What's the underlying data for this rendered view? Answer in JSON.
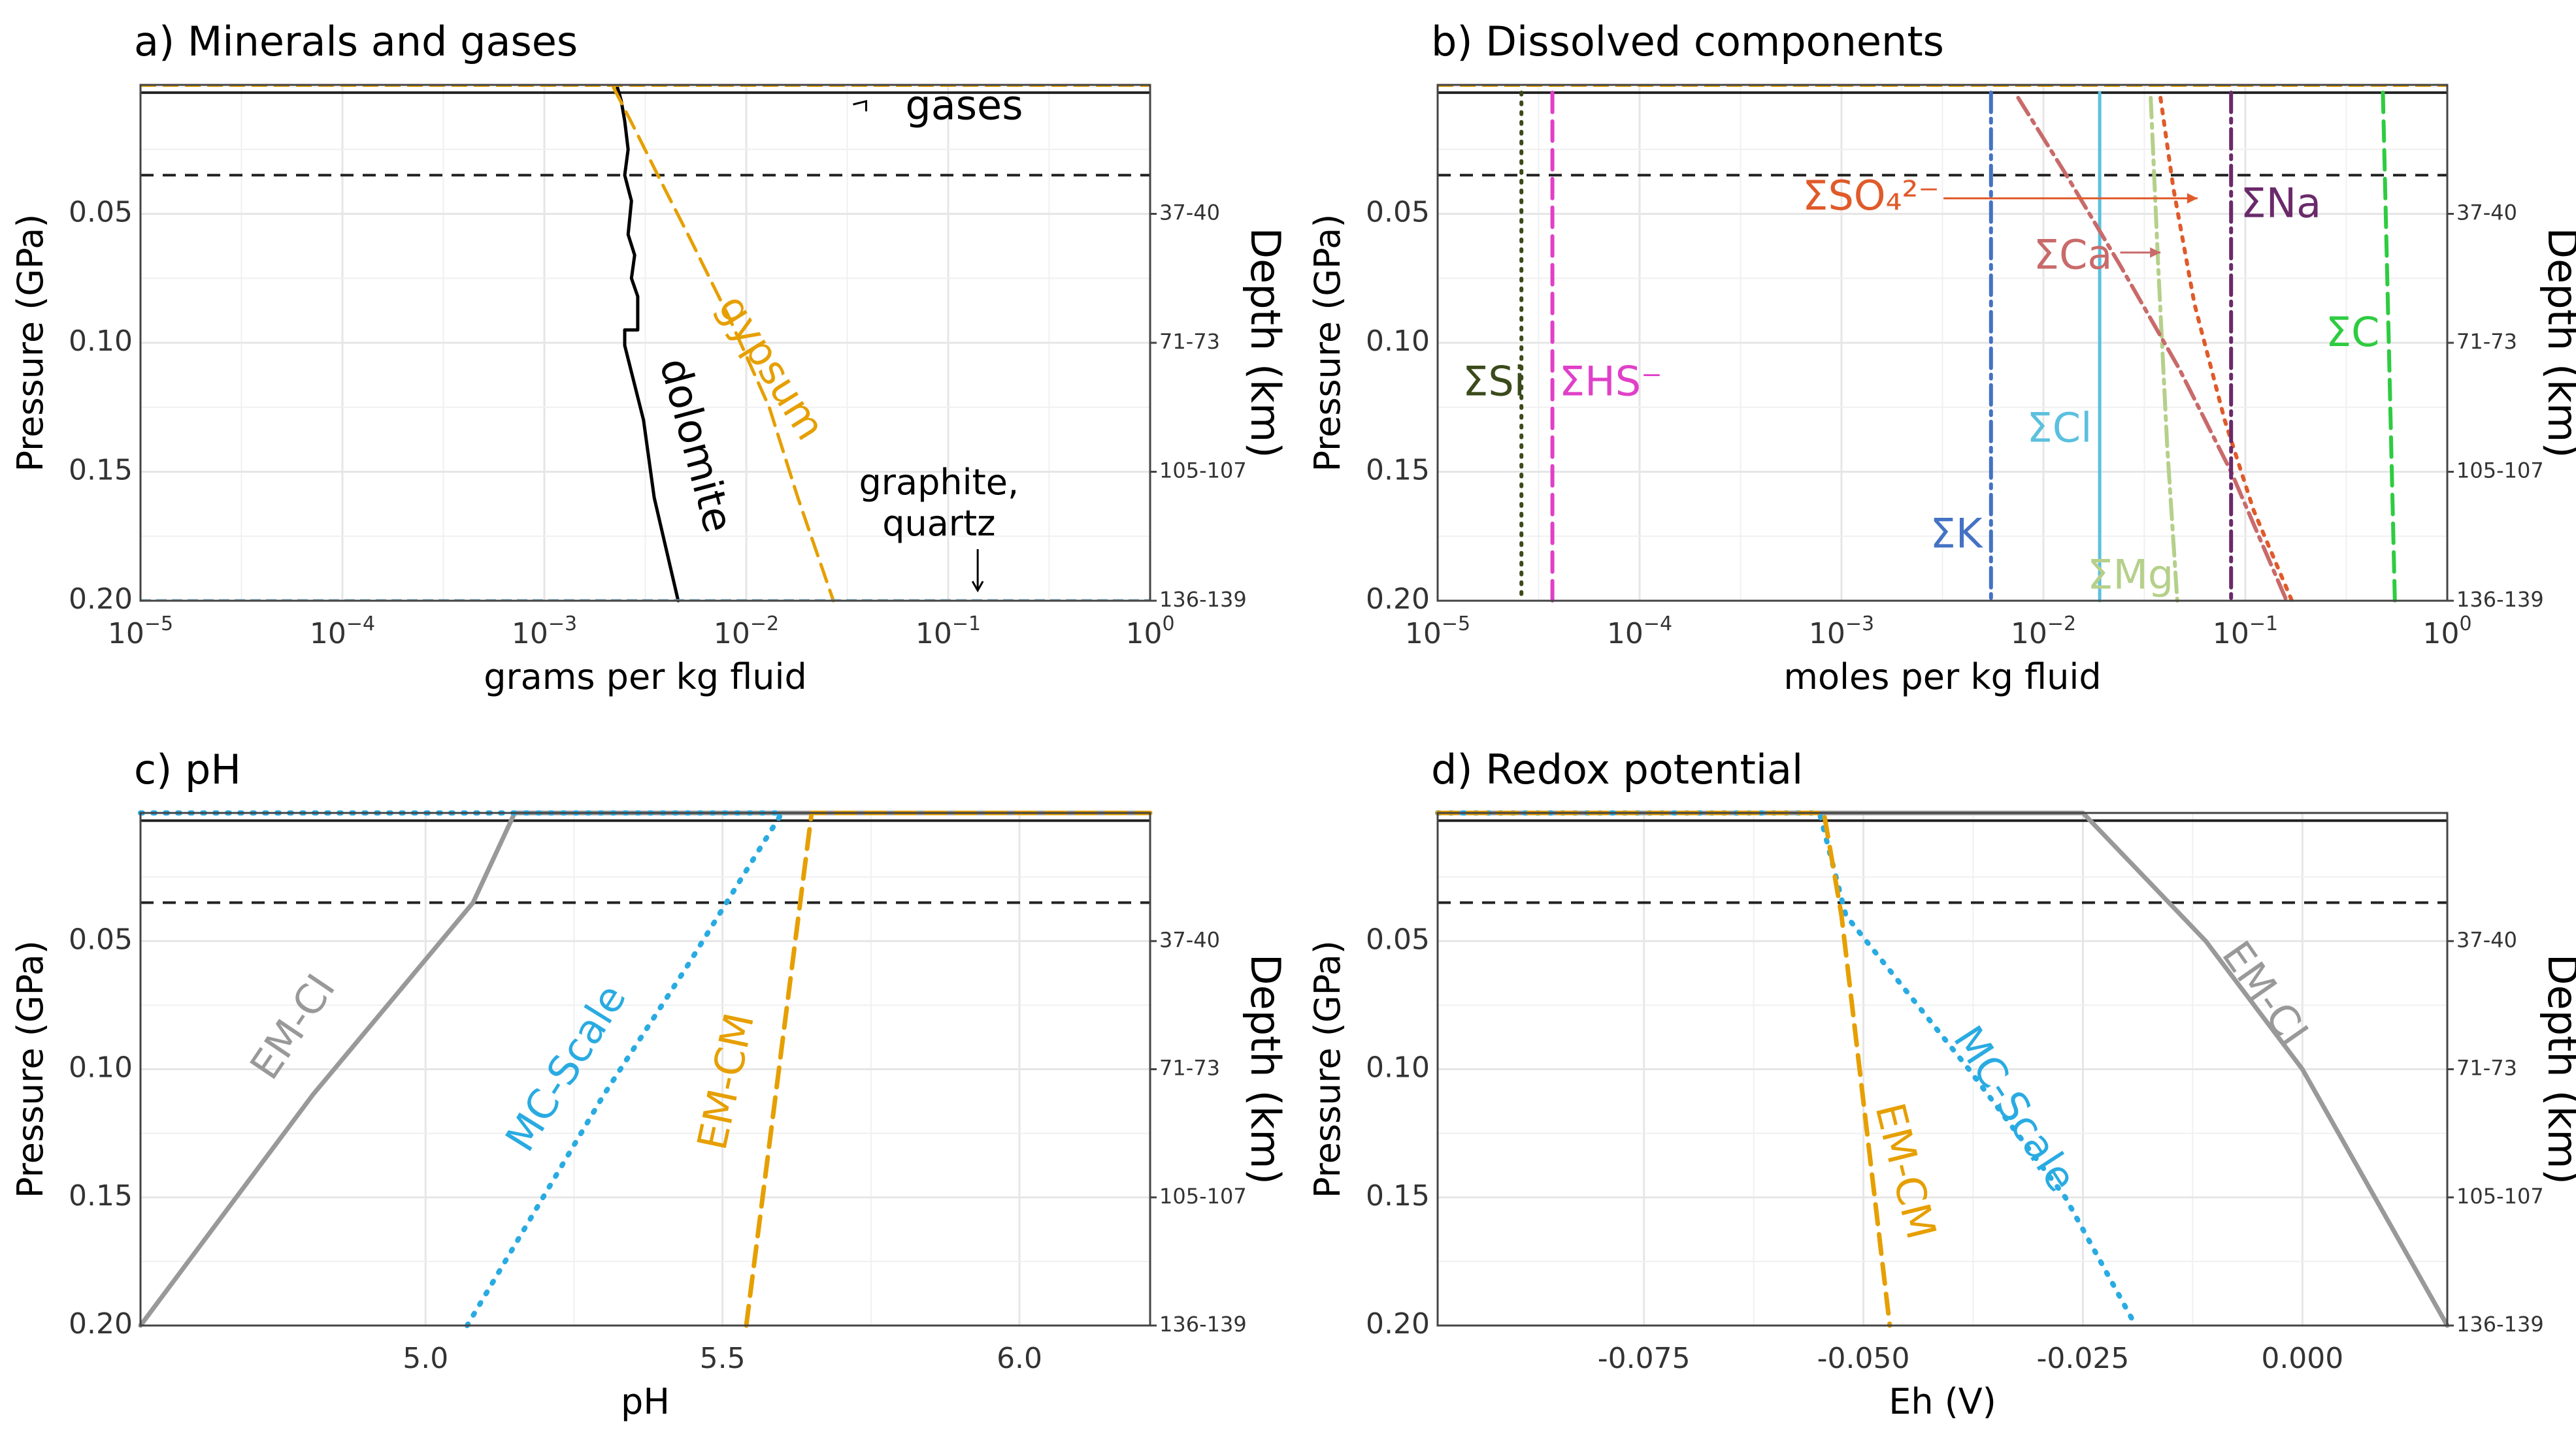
{
  "chart_data": [
    {
      "id": "a",
      "type": "line",
      "title": "a) Minerals and gases",
      "xlabel": "grams per kg fluid",
      "ylabel": "Pressure (GPa)",
      "y2label": "Depth (km)",
      "xscale": "log",
      "xlim": [
        1e-05,
        1
      ],
      "ylim": [
        0.2,
        0.0
      ],
      "xticks": [
        {
          "v": 1e-05,
          "base": "10",
          "exp": "−5"
        },
        {
          "v": 0.0001,
          "base": "10",
          "exp": "−4"
        },
        {
          "v": 0.001,
          "base": "10",
          "exp": "−3"
        },
        {
          "v": 0.01,
          "base": "10",
          "exp": "−2"
        },
        {
          "v": 0.1,
          "base": "10",
          "exp": "−1"
        },
        {
          "v": 1,
          "base": "10",
          "exp": "0"
        }
      ],
      "yticks": [
        {
          "v": 0.05,
          "label": "0.05"
        },
        {
          "v": 0.1,
          "label": "0.10"
        },
        {
          "v": 0.15,
          "label": "0.15"
        },
        {
          "v": 0.2,
          "label": "0.20"
        }
      ],
      "depth_ticks": [
        {
          "v": 0.05,
          "label": "37-40"
        },
        {
          "v": 0.1,
          "label": "71-73"
        },
        {
          "v": 0.15,
          "label": "105-107"
        },
        {
          "v": 0.2,
          "label": "136-139"
        }
      ],
      "solid_ref": 0.003,
      "dashed_ref": 0.035,
      "series": [
        {
          "name": "dolomite",
          "color": "#000000",
          "dash": "",
          "width": 5,
          "x": [
            0.0023,
            0.0024,
            0.0025,
            0.0026,
            0.0025,
            0.0027,
            0.0026,
            0.0028,
            0.0027,
            0.0029,
            0.0029,
            0.0025,
            0.0025,
            0.0031,
            0.0035,
            0.0046
          ],
          "y": [
            0.001,
            0.006,
            0.014,
            0.025,
            0.035,
            0.045,
            0.058,
            0.066,
            0.075,
            0.082,
            0.095,
            0.095,
            0.101,
            0.13,
            0.16,
            0.2
          ]
        },
        {
          "name": "gypsum",
          "color": "#e69f00",
          "dash": "28,14",
          "width": 5,
          "x": [
            0.0022,
            0.0028,
            0.0037,
            0.0053,
            0.0082,
            0.013,
            0.018,
            0.027
          ],
          "y": [
            0.001,
            0.017,
            0.036,
            0.06,
            0.09,
            0.125,
            0.16,
            0.2
          ]
        }
      ],
      "texts": [
        {
          "name": "gases-label",
          "text": "gases",
          "x": 0.12,
          "y": 0.009,
          "rot": 0,
          "color": "#000000",
          "size": 62
        },
        {
          "name": "dolomite-label",
          "text": "dolomite",
          "x": 0.0055,
          "y": 0.14,
          "rot": 75,
          "color": "#000000",
          "size": 62
        },
        {
          "name": "gypsum-label",
          "text": "gypsum",
          "x": 0.013,
          "y": 0.11,
          "rot": 58,
          "color": "#e69f00",
          "size": 62
        },
        {
          "name": "graphite-label",
          "text": "graphite,",
          "x": 0.09,
          "y": 0.155,
          "rot": 0,
          "color": "#000000",
          "size": 54
        },
        {
          "name": "quartz-label",
          "text": "quartz",
          "x": 0.09,
          "y": 0.171,
          "rot": 0,
          "color": "#000000",
          "size": 54
        }
      ]
    },
    {
      "id": "b",
      "type": "line",
      "title": "b) Dissolved components",
      "xlabel": "moles per kg fluid",
      "ylabel": "Pressure (GPa)",
      "y2label": "Depth (km)",
      "xscale": "log",
      "xlim": [
        1e-05,
        1
      ],
      "ylim": [
        0.2,
        0.0
      ],
      "xticks": [
        {
          "v": 1e-05,
          "base": "10",
          "exp": "−5"
        },
        {
          "v": 0.0001,
          "base": "10",
          "exp": "−4"
        },
        {
          "v": 0.001,
          "base": "10",
          "exp": "−3"
        },
        {
          "v": 0.01,
          "base": "10",
          "exp": "−2"
        },
        {
          "v": 0.1,
          "base": "10",
          "exp": "−1"
        },
        {
          "v": 1,
          "base": "10",
          "exp": "0"
        }
      ],
      "yticks": [
        {
          "v": 0.05,
          "label": "0.05"
        },
        {
          "v": 0.1,
          "label": "0.10"
        },
        {
          "v": 0.15,
          "label": "0.15"
        },
        {
          "v": 0.2,
          "label": "0.20"
        }
      ],
      "depth_ticks": [
        {
          "v": 0.05,
          "label": "37-40"
        },
        {
          "v": 0.1,
          "label": "71-73"
        },
        {
          "v": 0.15,
          "label": "105-107"
        },
        {
          "v": 0.2,
          "label": "136-139"
        }
      ],
      "solid_ref": 0.003,
      "dashed_ref": 0.035,
      "series": [
        {
          "name": "ΣSi",
          "color": "#3b4a1a",
          "dash": "3,12",
          "width": 6,
          "x": [
            2.6e-05,
            2.6e-05
          ],
          "y": [
            0.003,
            0.2
          ]
        },
        {
          "name": "ΣHS⁻",
          "color": "#e040c8",
          "dash": "30,14",
          "width": 6,
          "x": [
            3.7e-05,
            3.7e-05
          ],
          "y": [
            0.003,
            0.2
          ]
        },
        {
          "name": "ΣK",
          "color": "#4472c4",
          "dash": "30,10,6,10",
          "width": 6,
          "x": [
            0.0055,
            0.0055
          ],
          "y": [
            0.003,
            0.2
          ]
        },
        {
          "name": "ΣCl",
          "color": "#5bc0de",
          "dash": "",
          "width": 5,
          "x": [
            0.019,
            0.019
          ],
          "y": [
            0.003,
            0.2
          ]
        },
        {
          "name": "ΣMg",
          "color": "#b5d08a",
          "dash": "30,10,6,10",
          "width": 6,
          "x": [
            0.034,
            0.037,
            0.041,
            0.046
          ],
          "y": [
            0.005,
            0.07,
            0.14,
            0.2
          ]
        },
        {
          "name": "ΣSO₄²⁻",
          "color": "#e05a2a",
          "dash": "6,12",
          "width": 6,
          "x": [
            0.038,
            0.044,
            0.056,
            0.079,
            0.11,
            0.17
          ],
          "y": [
            0.005,
            0.04,
            0.085,
            0.13,
            0.165,
            0.2
          ]
        },
        {
          "name": "ΣCa",
          "color": "#c96a6a",
          "dash": "30,10,6,10",
          "width": 6,
          "x": [
            0.0075,
            0.013,
            0.024,
            0.047,
            0.085,
            0.16
          ],
          "y": [
            0.005,
            0.035,
            0.07,
            0.11,
            0.15,
            0.2
          ]
        },
        {
          "name": "ΣNa",
          "color": "#6a2a6a",
          "dash": "30,10,6,10",
          "width": 6,
          "x": [
            0.085,
            0.085
          ],
          "y": [
            0.003,
            0.2
          ]
        },
        {
          "name": "ΣC",
          "color": "#2ecc40",
          "dash": "30,14",
          "width": 6,
          "x": [
            0.48,
            0.55
          ],
          "y": [
            0.003,
            0.2
          ]
        }
      ],
      "texts": [
        {
          "name": "si-label",
          "text": "ΣSi",
          "x": 1.9e-05,
          "y": 0.116,
          "rot": 0,
          "color": "#3b4a1a",
          "size": 62
        },
        {
          "name": "hs-label",
          "text": "ΣHS⁻",
          "x": 7.2e-05,
          "y": 0.116,
          "rot": 0,
          "color": "#e040c8",
          "size": 62
        },
        {
          "name": "so4-label",
          "text": "ΣSO₄²⁻",
          "x": 0.0014,
          "y": 0.044,
          "rot": 0,
          "color": "#e05a2a",
          "size": 62
        },
        {
          "name": "na-label",
          "text": "ΣNa",
          "x": 0.15,
          "y": 0.047,
          "rot": 0,
          "color": "#6a2a6a",
          "size": 62
        },
        {
          "name": "ca-label",
          "text": "ΣCa",
          "x": 0.014,
          "y": 0.067,
          "rot": 0,
          "color": "#c96a6a",
          "size": 62
        },
        {
          "name": "c-label",
          "text": "ΣC",
          "x": 0.34,
          "y": 0.097,
          "rot": 0,
          "color": "#2ecc40",
          "size": 62
        },
        {
          "name": "cl-label",
          "text": "ΣCl",
          "x": 0.012,
          "y": 0.134,
          "rot": 0,
          "color": "#5bc0de",
          "size": 62
        },
        {
          "name": "k-label",
          "text": "ΣK",
          "x": 0.0037,
          "y": 0.175,
          "rot": 0,
          "color": "#4472c4",
          "size": 62
        },
        {
          "name": "mg-label",
          "text": "ΣMg",
          "x": 0.027,
          "y": 0.191,
          "rot": 0,
          "color": "#b5d08a",
          "size": 62
        }
      ]
    },
    {
      "id": "c",
      "type": "line",
      "title": "c) pH",
      "xlabel": "pH",
      "ylabel": "Pressure (GPa)",
      "y2label": "Depth (km)",
      "xscale": "linear",
      "xlim": [
        4.52,
        6.22
      ],
      "ylim": [
        0.2,
        0.0
      ],
      "xticks": [
        {
          "v": 5.0,
          "label": "5.0"
        },
        {
          "v": 5.5,
          "label": "5.5"
        },
        {
          "v": 6.0,
          "label": "6.0"
        }
      ],
      "yticks": [
        {
          "v": 0.05,
          "label": "0.05"
        },
        {
          "v": 0.1,
          "label": "0.10"
        },
        {
          "v": 0.15,
          "label": "0.15"
        },
        {
          "v": 0.2,
          "label": "0.20"
        }
      ],
      "depth_ticks": [
        {
          "v": 0.05,
          "label": "37-40"
        },
        {
          "v": 0.1,
          "label": "71-73"
        },
        {
          "v": 0.15,
          "label": "105-107"
        },
        {
          "v": 0.2,
          "label": "136-139"
        }
      ],
      "solid_ref": 0.003,
      "dashed_ref": 0.035,
      "series": [
        {
          "name": "EM-CI",
          "color": "#999999",
          "dash": "",
          "width": 7,
          "x": [
            4.52,
            4.81,
            5.08,
            5.15,
            6.22
          ],
          "y": [
            0.2,
            0.11,
            0.035,
            0.0,
            0.0
          ]
        },
        {
          "name": "MC-Scale",
          "color": "#29abe2",
          "dash": "3,16",
          "width": 8,
          "x": [
            4.52,
            5.6,
            5.44,
            5.3,
            5.07
          ],
          "y": [
            0.0,
            0.0,
            0.06,
            0.11,
            0.2
          ]
        },
        {
          "name": "EM-CM",
          "color": "#e69f00",
          "dash": "30,16",
          "width": 7,
          "x": [
            5.54,
            5.65,
            6.22
          ],
          "y": [
            0.2,
            0.0,
            0.0
          ]
        }
      ],
      "texts": [
        {
          "name": "emci-label-c",
          "text": "EM-CI",
          "x": 4.78,
          "y": 0.084,
          "rot": -56,
          "color": "#999999",
          "size": 62
        },
        {
          "name": "mcscale-label-c",
          "text": "MC-Scale",
          "x": 5.24,
          "y": 0.1,
          "rot": -58,
          "color": "#29abe2",
          "size": 62
        },
        {
          "name": "emcm-label-c",
          "text": "EM-CM",
          "x": 5.51,
          "y": 0.105,
          "rot": -78,
          "color": "#e69f00",
          "size": 62
        }
      ]
    },
    {
      "id": "d",
      "type": "line",
      "title": "d) Redox potential",
      "xlabel": "Eh (V)",
      "ylabel": "Pressure (GPa)",
      "y2label": "Depth (km)",
      "xscale": "linear",
      "xlim": [
        -0.0985,
        0.0165
      ],
      "ylim": [
        0.2,
        0.0
      ],
      "xticks": [
        {
          "v": -0.075,
          "label": "-0.075"
        },
        {
          "v": -0.05,
          "label": "-0.050"
        },
        {
          "v": -0.025,
          "label": "-0.025"
        },
        {
          "v": 0.0,
          "label": "0.000"
        }
      ],
      "yticks": [
        {
          "v": 0.05,
          "label": "0.05"
        },
        {
          "v": 0.1,
          "label": "0.10"
        },
        {
          "v": 0.15,
          "label": "0.15"
        },
        {
          "v": 0.2,
          "label": "0.20"
        }
      ],
      "depth_ticks": [
        {
          "v": 0.05,
          "label": "37-40"
        },
        {
          "v": 0.1,
          "label": "71-73"
        },
        {
          "v": 0.15,
          "label": "105-107"
        },
        {
          "v": 0.2,
          "label": "136-139"
        }
      ],
      "solid_ref": 0.003,
      "dashed_ref": 0.035,
      "series": [
        {
          "name": "EM-CI",
          "color": "#999999",
          "dash": "",
          "width": 7,
          "x": [
            -0.0985,
            -0.025,
            -0.011,
            0.0,
            0.0165
          ],
          "y": [
            0.0,
            0.0,
            0.05,
            0.1,
            0.2
          ]
        },
        {
          "name": "MC-Scale",
          "color": "#29abe2",
          "dash": "3,16",
          "width": 8,
          "x": [
            -0.0985,
            -0.055,
            -0.052,
            -0.038,
            -0.027,
            -0.019
          ],
          "y": [
            0.0,
            0.0,
            0.04,
            0.1,
            0.15,
            0.2
          ]
        },
        {
          "name": "EM-CM",
          "color": "#e69f00",
          "dash": "30,16",
          "width": 7,
          "x": [
            -0.0985,
            -0.0545,
            -0.0525,
            -0.047
          ],
          "y": [
            0.0,
            0.0,
            0.04,
            0.2
          ]
        }
      ],
      "texts": [
        {
          "name": "emci-label-d",
          "text": "EM-CI",
          "x": -0.0045,
          "y": 0.071,
          "rot": 55,
          "color": "#999999",
          "size": 62
        },
        {
          "name": "mcscale-label-d",
          "text": "MC-Scale",
          "x": -0.033,
          "y": 0.116,
          "rot": 57,
          "color": "#29abe2",
          "size": 62
        },
        {
          "name": "emcm-label-d",
          "text": "EM-CM",
          "x": -0.0455,
          "y": 0.14,
          "rot": 76,
          "color": "#e69f00",
          "size": 62
        }
      ]
    }
  ]
}
